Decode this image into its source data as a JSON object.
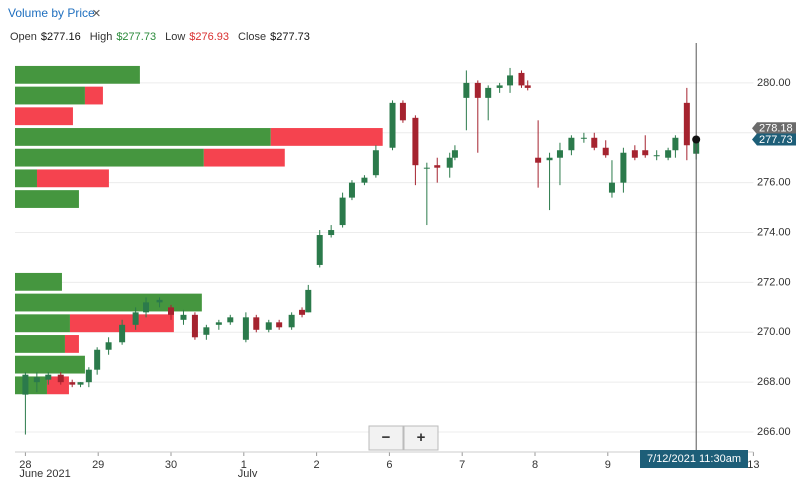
{
  "header": {
    "title": "Volume by Price",
    "close_icon": "×",
    "ohlc": [
      {
        "label": "Open",
        "value": "$277.16"
      },
      {
        "label": "High",
        "value": "$277.73"
      },
      {
        "label": "Low",
        "value": "$276.93"
      },
      {
        "label": "Close",
        "value": "$277.73"
      }
    ]
  },
  "chart_data": {
    "type": "candlestick",
    "x": [
      0,
      1.1,
      2.2,
      3.4,
      4.5,
      5.3,
      6.1,
      6.9,
      8,
      9.3,
      10.6,
      11.6,
      12.9,
      14,
      15.2,
      16.3,
      17.4,
      18.6,
      19.7,
      21.2,
      22.2,
      23.4,
      24.4,
      25.6,
      26.6,
      27.2,
      28.3,
      29.4,
      30.5,
      31.4,
      32.6,
      33.7,
      35.3,
      36.3,
      37.5,
      38.6,
      39.6,
      40.8,
      41.3,
      42.4,
      43.5,
      44.5,
      45.6,
      46.6,
      47.7,
      48.3,
      49.3,
      50.4,
      51.4,
      52.5,
      53.7,
      54.7,
      55.8,
      56.4,
      57.5,
      58.6,
      59.6,
      60.7,
      61.8,
      62.5,
      63.6,
      64.5
    ],
    "open": [
      267.5,
      268.0,
      268.1,
      268.3,
      268.0,
      267.9,
      268.0,
      268.5,
      269.3,
      269.6,
      270.3,
      270.8,
      271.2,
      271.0,
      270.5,
      270.7,
      269.9,
      270.3,
      270.4,
      269.7,
      270.6,
      270.1,
      270.4,
      270.2,
      270.9,
      270.8,
      272.7,
      273.9,
      274.3,
      275.4,
      276.0,
      276.3,
      277.4,
      279.2,
      278.6,
      276.6,
      276.7,
      276.6,
      277.0,
      279.4,
      280.0,
      279.4,
      279.8,
      279.9,
      280.4,
      279.9,
      277.0,
      276.9,
      277.0,
      277.3,
      277.8,
      277.8,
      277.4,
      275.6,
      276.0,
      277.3,
      277.3,
      277.1,
      277.0,
      277.3,
      279.2,
      277.16
    ],
    "high": [
      268.4,
      268.4,
      268.4,
      268.4,
      268.1,
      268.0,
      268.6,
      269.4,
      269.8,
      270.5,
      271.0,
      271.4,
      271.4,
      271.1,
      270.9,
      270.8,
      270.3,
      270.5,
      270.7,
      270.8,
      270.7,
      270.5,
      270.5,
      270.8,
      271.0,
      271.9,
      274.1,
      274.3,
      275.6,
      276.1,
      276.3,
      277.5,
      279.3,
      279.3,
      278.7,
      276.8,
      277.0,
      277.2,
      277.5,
      280.5,
      280.1,
      279.9,
      280.0,
      280.6,
      280.5,
      280.1,
      278.5,
      277.2,
      277.6,
      277.9,
      278.0,
      278.0,
      277.7,
      276.9,
      277.4,
      277.5,
      277.9,
      277.3,
      277.4,
      277.9,
      279.8,
      277.73
    ],
    "low": [
      265.9,
      267.6,
      267.9,
      267.9,
      267.8,
      267.8,
      267.8,
      268.3,
      269.1,
      269.5,
      270.1,
      270.6,
      271.0,
      270.5,
      270.3,
      269.7,
      269.7,
      270.1,
      270.3,
      269.6,
      270.0,
      270.0,
      270.1,
      270.1,
      270.6,
      270.8,
      272.6,
      273.8,
      274.2,
      275.3,
      275.9,
      276.2,
      277.3,
      278.4,
      275.9,
      274.3,
      276.0,
      276.2,
      276.9,
      278.1,
      277.2,
      278.5,
      279.6,
      279.6,
      279.8,
      279.7,
      275.8,
      274.9,
      275.9,
      277.1,
      277.6,
      277.3,
      277.0,
      275.4,
      275.6,
      276.9,
      277.0,
      276.9,
      276.9,
      277.0,
      276.9,
      276.93
    ],
    "close": [
      268.3,
      268.2,
      268.3,
      268.0,
      267.9,
      268.0,
      268.5,
      269.3,
      269.6,
      270.3,
      270.8,
      271.2,
      271.3,
      270.7,
      270.7,
      269.8,
      270.2,
      270.4,
      270.6,
      270.6,
      270.1,
      270.4,
      270.2,
      270.7,
      270.7,
      271.7,
      273.9,
      274.1,
      275.4,
      276.0,
      276.2,
      277.3,
      279.2,
      278.5,
      276.7,
      276.6,
      276.6,
      277.0,
      277.3,
      280.0,
      279.4,
      279.8,
      279.9,
      280.3,
      279.9,
      279.8,
      276.8,
      277.0,
      277.3,
      277.8,
      277.8,
      277.4,
      277.1,
      276.0,
      277.2,
      277.0,
      277.1,
      277.1,
      277.3,
      277.8,
      277.5,
      277.73
    ],
    "up_color": "#2b7a4b",
    "down_color": "#a5232f",
    "xlim": [
      -1,
      70
    ],
    "xticks": [
      {
        "value": 0,
        "label": "28"
      },
      {
        "value": 7,
        "label": "29"
      },
      {
        "value": 14,
        "label": "30"
      },
      {
        "value": 21,
        "label": "1"
      },
      {
        "value": 28,
        "label": "2"
      },
      {
        "value": 35,
        "label": "6"
      },
      {
        "value": 42,
        "label": "7"
      },
      {
        "value": 49,
        "label": "8"
      },
      {
        "value": 56,
        "label": "9"
      },
      {
        "value": 70,
        "label": "13"
      }
    ],
    "x_sublabels": [
      {
        "value": 0,
        "label": "June 2021"
      },
      {
        "value": 21,
        "label": "July"
      }
    ],
    "ylim": [
      265.2,
      281.6
    ],
    "yticks": [
      {
        "value": 266,
        "label": "266.00"
      },
      {
        "value": 268,
        "label": "268.00"
      },
      {
        "value": 270,
        "label": "270.00"
      },
      {
        "value": 272,
        "label": "272.00"
      },
      {
        "value": 274,
        "label": "274.00"
      },
      {
        "value": 276,
        "label": "276.00"
      },
      {
        "value": 278,
        "label": "278.00"
      },
      {
        "value": 280,
        "label": "280.00"
      }
    ],
    "grid": true,
    "volume_profile": {
      "bins": [
        280.68,
        279.85,
        279.02,
        278.19,
        277.36,
        276.53,
        275.7,
        274.87,
        274.04,
        273.21,
        272.38,
        271.55,
        270.72,
        269.89,
        269.06,
        268.23,
        267.4
      ],
      "buy": [
        125,
        70,
        0,
        256,
        189,
        22,
        64,
        0,
        0,
        0,
        47,
        187,
        55,
        50,
        70,
        32
      ],
      "sell": [
        0,
        18,
        58,
        112,
        81,
        72,
        0,
        0,
        0,
        0,
        0,
        0,
        104,
        14,
        0,
        22
      ],
      "xlim": [
        0,
        739
      ],
      "buy_color": "#45963f",
      "sell_color": "#f5434f"
    },
    "price_markers": [
      {
        "value": 278.18,
        "color": "#6b6b6b"
      },
      {
        "value": 277.73,
        "color": "#1d5e78"
      }
    ],
    "crosshair": {
      "x": 64.5,
      "label": "7/12/2021 11:30am",
      "color": "#1d5e78"
    },
    "zoom_controls": [
      "−",
      "+"
    ]
  }
}
